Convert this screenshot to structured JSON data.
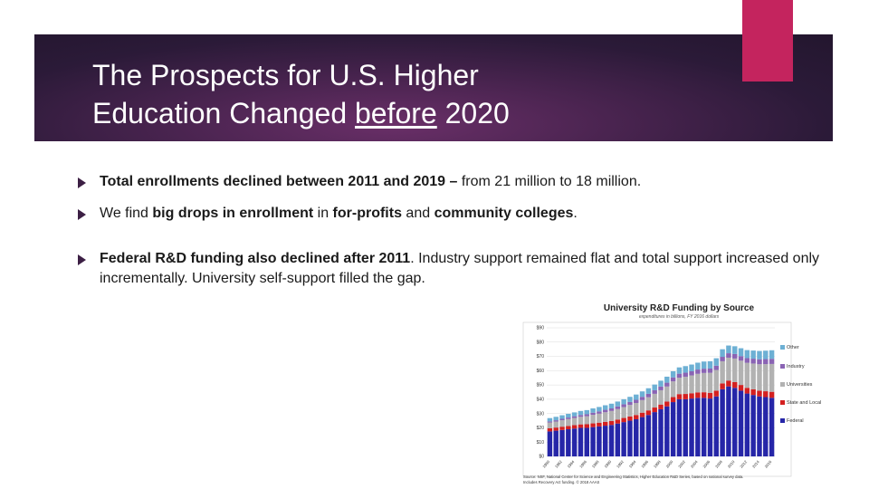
{
  "slide": {
    "title_line1": "The Prospects for U.S. Higher",
    "title_line2_pre": "Education Changed ",
    "title_line2_underlined": "before",
    "title_line2_post": " 2020",
    "bullets": [
      {
        "parts": [
          {
            "text": "Total enrollments declined between 2011 and 2019 – ",
            "bold": true
          },
          {
            "text": "from 21 million to 18 million.",
            "bold": false
          }
        ]
      },
      {
        "parts": [
          {
            "text": "We find ",
            "bold": false
          },
          {
            "text": "big drops in enrollment",
            "bold": true
          },
          {
            "text": " in ",
            "bold": false
          },
          {
            "text": "for-profits",
            "bold": true
          },
          {
            "text": " and ",
            "bold": false
          },
          {
            "text": "community colleges",
            "bold": true
          },
          {
            "text": ".",
            "bold": false
          }
        ]
      },
      {
        "parts": [
          {
            "text": "Federal R&D funding also declined after 2011",
            "bold": true
          },
          {
            "text": ".  Industry support remained flat and total support increased only incrementally.  University self-support filled the gap.",
            "bold": false
          }
        ]
      }
    ],
    "colors": {
      "accent": "#c4245e",
      "title_band": "#3a1f45",
      "bullet_arrow": "#3c1f44"
    }
  },
  "chart_data": {
    "type": "bar",
    "stacked": true,
    "title": "University R&D Funding by Source",
    "subtitle": "expenditures in billions, FY 2016 dollars",
    "ylim": [
      0,
      90
    ],
    "y_ticks": [
      "$0",
      "$10",
      "$20",
      "$30",
      "$40",
      "$50",
      "$60",
      "$70",
      "$80",
      "$90"
    ],
    "x_tick_labels": [
      "1980",
      "1982",
      "1984",
      "1986",
      "1988",
      "1990",
      "1992",
      "1994",
      "1996",
      "1998",
      "2000",
      "2002",
      "2004",
      "2006",
      "2008",
      "2010",
      "2012",
      "2014",
      "2016"
    ],
    "series": [
      {
        "name": "Federal",
        "color": "#2626a8",
        "values": [
          17.5,
          18,
          18.5,
          19,
          19.5,
          20,
          20,
          20.5,
          21,
          21.5,
          22,
          23,
          24,
          25,
          26,
          27.5,
          29,
          31,
          33,
          35,
          38,
          40,
          40,
          40.5,
          41,
          41,
          40.5,
          42,
          47,
          49,
          48,
          46,
          44,
          43,
          42,
          41.5,
          41
        ]
      },
      {
        "name": "State and Local",
        "color": "#d42020",
        "values": [
          2.2,
          2.2,
          2.3,
          2.3,
          2.4,
          2.4,
          2.5,
          2.6,
          2.6,
          2.7,
          2.8,
          2.8,
          2.9,
          3,
          3,
          3.1,
          3.2,
          3.2,
          3.3,
          3.4,
          3.5,
          3.6,
          3.7,
          3.7,
          3.8,
          3.9,
          4,
          4,
          4.1,
          4.1,
          4,
          4,
          4,
          4,
          4,
          4.1,
          4.2
        ]
      },
      {
        "name": "Universities",
        "color": "#b2b2b2",
        "values": [
          4,
          4.2,
          4.5,
          4.8,
          5,
          5.3,
          5.6,
          6,
          6.3,
          6.7,
          7,
          7.3,
          7.6,
          8,
          8.4,
          8.8,
          9.2,
          9.6,
          10,
          10.5,
          11,
          11.5,
          12,
          12.5,
          13,
          13.5,
          14,
          14.5,
          15.5,
          16,
          16.5,
          17,
          17.5,
          18,
          18.5,
          19,
          19.5
        ]
      },
      {
        "name": "Industry",
        "color": "#8a64b4",
        "values": [
          0.8,
          0.9,
          1,
          1.1,
          1.2,
          1.3,
          1.4,
          1.5,
          1.6,
          1.7,
          1.8,
          1.9,
          2,
          2.1,
          2.2,
          2.3,
          2.4,
          2.5,
          2.6,
          2.7,
          2.8,
          2.8,
          2.9,
          2.9,
          3,
          3,
          3,
          3,
          3.1,
          3.1,
          3.2,
          3.2,
          3.3,
          3.4,
          3.5,
          3.5,
          3.6
        ]
      },
      {
        "name": "Other",
        "color": "#6db0d4",
        "values": [
          2.3,
          2.4,
          2.5,
          2.6,
          2.7,
          2.8,
          2.9,
          3,
          3.1,
          3.2,
          3.3,
          3.4,
          3.5,
          3.6,
          3.7,
          3.8,
          3.9,
          4,
          4.1,
          4.2,
          4.3,
          4.4,
          4.6,
          4.7,
          4.8,
          5,
          5.1,
          5.2,
          5.3,
          5.4,
          5.4,
          5.5,
          5.6,
          5.7,
          5.8,
          5.9,
          6
        ]
      }
    ],
    "source_note_line1": "Source: NSF, National Center for Science and Engineering Statistics, Higher Education R&D Series, based on national survey data.",
    "source_note_line2": "Includes Recovery Act funding. © 2018 AAAS"
  }
}
